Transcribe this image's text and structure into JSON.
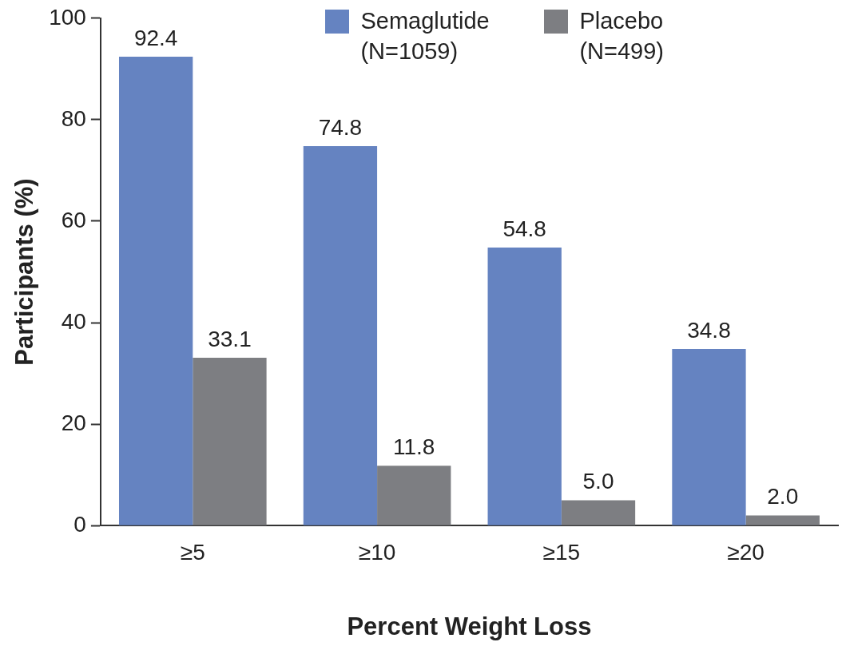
{
  "chart_data": {
    "type": "bar",
    "xlabel": "Percent Weight Loss",
    "ylabel": "Participants (%)",
    "categories": [
      "≥5",
      "≥10",
      "≥15",
      "≥20"
    ],
    "series": [
      {
        "name": "Semaglutide (N=1059)",
        "color": "#6583c1",
        "values": [
          92.4,
          74.8,
          54.8,
          34.8
        ],
        "value_labels": [
          "92.4",
          "74.8",
          "54.8",
          "34.8"
        ]
      },
      {
        "name": "Placebo (N=499)",
        "color": "#7d7e82",
        "values": [
          33.1,
          11.8,
          5,
          2
        ],
        "value_labels": [
          "33.1",
          "11.8",
          "5.0",
          "2.0"
        ]
      }
    ],
    "ylim": [
      0,
      100
    ],
    "yticks": [
      0,
      20,
      40,
      60,
      80,
      100
    ],
    "grid": false,
    "legend": "top"
  }
}
